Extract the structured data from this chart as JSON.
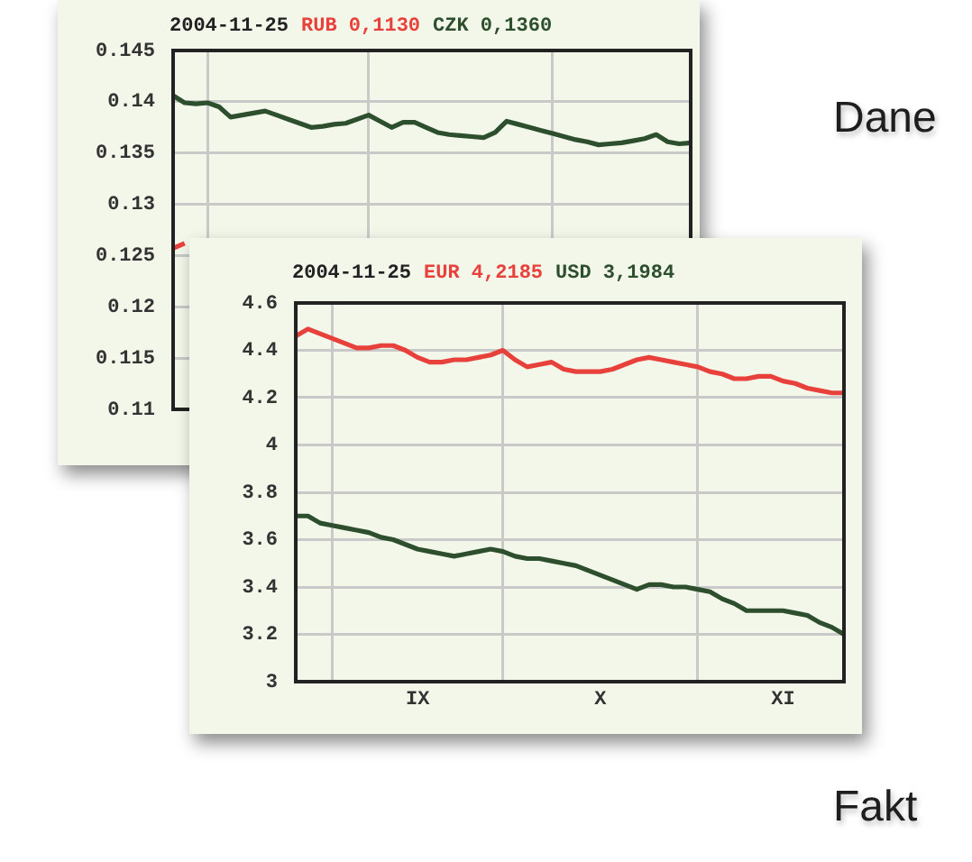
{
  "chart_data": [
    {
      "type": "line",
      "title": "2004-11-25",
      "categories": [
        null,
        null,
        null,
        null,
        null,
        null,
        null,
        null,
        null,
        null,
        null,
        null,
        null,
        null,
        null,
        null,
        null,
        null,
        null,
        null,
        null,
        null,
        null,
        null,
        null,
        null,
        null,
        null,
        null,
        null,
        null,
        null,
        null,
        null,
        null,
        null,
        null,
        null,
        null,
        null,
        null,
        null,
        null,
        null,
        null,
        null
      ],
      "ylim": [
        0.11,
        0.145
      ],
      "yticks": [
        0.11,
        0.115,
        0.12,
        0.125,
        0.13,
        0.135,
        0.14,
        0.145
      ],
      "grid": true,
      "legend": false,
      "tick_labels": "y",
      "marker": "none",
      "line_style": "solid",
      "series": [
        {
          "name": "RUB 0,1130",
          "color": "#e8413c",
          "values": [
            0.1257,
            0.1262,
            null,
            null,
            null,
            null,
            null,
            null,
            null,
            null,
            null,
            null,
            null,
            null,
            null,
            null,
            null,
            null,
            null,
            null,
            null,
            null,
            null,
            null,
            null,
            null,
            null,
            null,
            null,
            null,
            null,
            null,
            null,
            null,
            null,
            null,
            null,
            null,
            null,
            null,
            null,
            null,
            null,
            null,
            null,
            null
          ]
        },
        {
          "name": "CZK 0,1360",
          "color": "#2d4f2d",
          "values": [
            0.1406,
            0.1399,
            0.1398,
            0.1399,
            0.1395,
            0.1385,
            0.1387,
            0.1389,
            0.1391,
            0.1387,
            0.1383,
            0.1379,
            0.1375,
            0.1376,
            0.1378,
            0.1379,
            0.1383,
            0.1387,
            0.1381,
            0.1375,
            0.138,
            0.138,
            0.1375,
            0.137,
            0.1368,
            0.1367,
            0.1366,
            0.1365,
            0.137,
            0.1381,
            0.1378,
            0.1375,
            0.1372,
            0.1369,
            0.1366,
            0.1363,
            0.1361,
            0.1358,
            0.1359,
            0.136,
            0.1362,
            0.1364,
            0.1368,
            0.1361,
            0.1359,
            0.136
          ]
        }
      ]
    },
    {
      "type": "line",
      "title": "2004-11-25",
      "categories": [
        null,
        null,
        null,
        null,
        null,
        null,
        null,
        null,
        null,
        null,
        "IX",
        null,
        null,
        null,
        null,
        null,
        null,
        null,
        null,
        null,
        null,
        null,
        null,
        null,
        null,
        "X",
        null,
        null,
        null,
        null,
        null,
        null,
        null,
        null,
        null,
        null,
        null,
        null,
        null,
        null,
        "XI",
        null,
        null,
        null,
        null,
        null
      ],
      "ylim": [
        3,
        4.6
      ],
      "yticks": [
        3,
        3.2,
        3.4,
        3.6,
        3.8,
        4,
        4.2,
        4.4,
        4.6
      ],
      "grid": true,
      "legend": false,
      "marker": "none",
      "line_style": "solid",
      "series": [
        {
          "name": "EUR 4,2185",
          "color": "#e8413c",
          "values": [
            4.46,
            4.49,
            4.47,
            4.45,
            4.43,
            4.41,
            4.41,
            4.42,
            4.42,
            4.4,
            4.37,
            4.35,
            4.35,
            4.36,
            4.36,
            4.37,
            4.38,
            4.4,
            4.36,
            4.33,
            4.34,
            4.35,
            4.32,
            4.31,
            4.31,
            4.31,
            4.32,
            4.34,
            4.36,
            4.37,
            4.36,
            4.35,
            4.34,
            4.33,
            4.31,
            4.3,
            4.28,
            4.28,
            4.29,
            4.29,
            4.27,
            4.26,
            4.24,
            4.23,
            4.22,
            4.22
          ]
        },
        {
          "name": "USD 3,1984",
          "color": "#2d4f2d",
          "values": [
            3.7,
            3.7,
            3.67,
            3.66,
            3.65,
            3.64,
            3.63,
            3.61,
            3.6,
            3.58,
            3.56,
            3.55,
            3.54,
            3.53,
            3.54,
            3.55,
            3.56,
            3.55,
            3.53,
            3.52,
            3.52,
            3.51,
            3.5,
            3.49,
            3.47,
            3.45,
            3.43,
            3.41,
            3.39,
            3.41,
            3.41,
            3.4,
            3.4,
            3.39,
            3.38,
            3.35,
            3.33,
            3.3,
            3.3,
            3.3,
            3.3,
            3.29,
            3.28,
            3.25,
            3.23,
            3.2
          ]
        }
      ]
    },
    {
      "type": "other",
      "annotations": [
        "Dane",
        "Fakt"
      ]
    }
  ]
}
